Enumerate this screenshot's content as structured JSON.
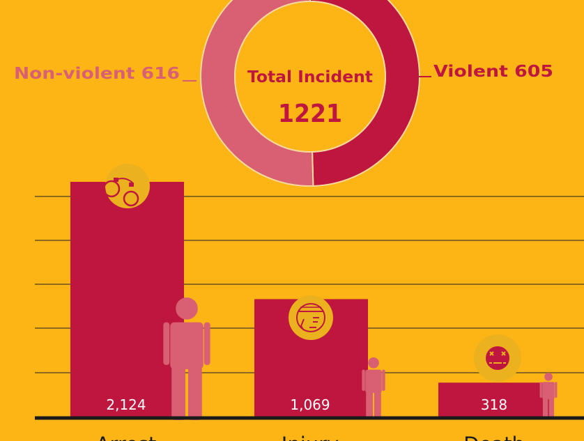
{
  "colors": {
    "background": "#FDB515",
    "violent": "#BE163E",
    "non_violent": "#D96072",
    "bar": "#BE163E",
    "figure": "#D96072",
    "gridline": "#8C6A1D",
    "baseline": "#1A1A1A",
    "icon_circle": "#EBB11E",
    "icon_stroke": "#BE163E",
    "center_text": "#BE163E",
    "value_label": "#FFFFFF"
  },
  "donut": {
    "center_label": "Total Incident",
    "total": "1221",
    "violent_label": "Violent 605",
    "non_violent_label": "Non-violent 616"
  },
  "icons": [
    "handcuffs-icon",
    "injured-face-icon",
    "dead-face-icon",
    "person-icon"
  ],
  "chart_data": [
    {
      "type": "pie",
      "categories": [
        "Violent",
        "Non-violent"
      ],
      "values": [
        605,
        616
      ],
      "title": "",
      "center_text": "Total Incident 1221"
    },
    {
      "type": "bar",
      "categories": [
        "Arrest",
        "Injury",
        "Death"
      ],
      "values": [
        2124,
        1069,
        318
      ],
      "value_labels": [
        "2,124",
        "1,069",
        "318"
      ],
      "title": "",
      "xlabel": "",
      "ylabel": "",
      "ylim": [
        0,
        2340
      ],
      "grid": true
    }
  ]
}
